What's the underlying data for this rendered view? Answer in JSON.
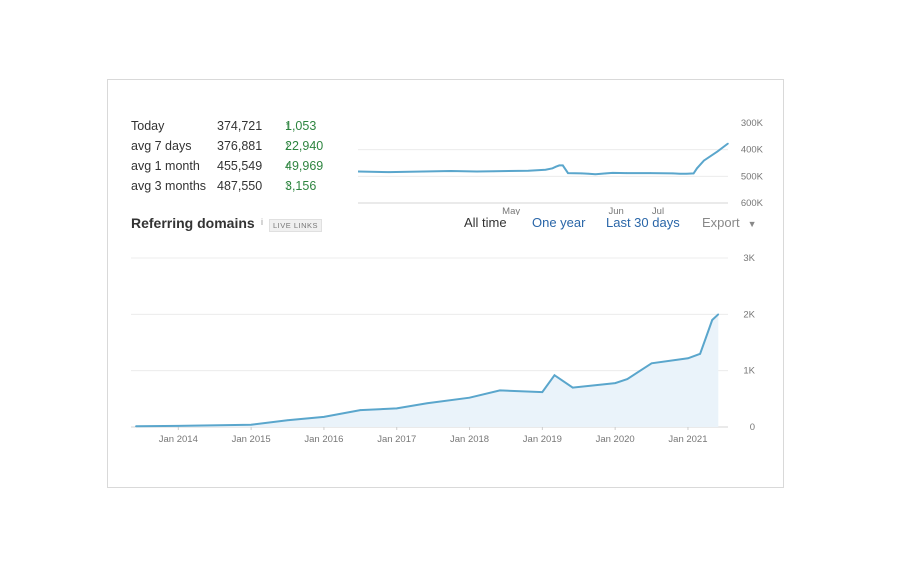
{
  "stats": [
    {
      "label": "Today",
      "value": "374,721",
      "delta": "1,053"
    },
    {
      "label": "avg 7 days",
      "value": "376,881",
      "delta": "22,940"
    },
    {
      "label": "avg 1 month",
      "value": "455,549",
      "delta": "49,969"
    },
    {
      "label": "avg 3 months",
      "value": "487,550",
      "delta": "3,156"
    }
  ],
  "icons": {
    "up_arrow": "up-arrow-icon",
    "info": "info-icon",
    "dropdown": "caret-down-icon"
  },
  "colors": {
    "line": "#5aa6cc",
    "area": "#eaf3fa",
    "positive": "#2e8540",
    "link": "#2a66a8"
  },
  "referring_domains": {
    "title": "Referring domains",
    "info_glyph": "i",
    "badge": "LIVE LINKS",
    "tabs": {
      "all_time": "All time",
      "one_year": "One year",
      "last_30_days": "Last 30 days",
      "export": "Export"
    }
  },
  "chart_data": [
    {
      "type": "line",
      "name": "rank-mini",
      "x_ticks": [
        "May",
        "Jun",
        "Jul"
      ],
      "y_ticks": [
        "300K",
        "400K",
        "500K",
        "600K"
      ],
      "y_reversed": true,
      "ylim": [
        300000,
        600000
      ],
      "x": [
        "Apr 1",
        "Apr 10",
        "Apr 20",
        "Apr 28",
        "May 5",
        "May 10",
        "May 20",
        "May 25",
        "May 27",
        "May 28",
        "May 29",
        "May 30",
        "Jun 1",
        "Jun 5",
        "Jun 7",
        "Jun 9",
        "Jun 12",
        "Jun 14",
        "Jun 18",
        "Jun 25",
        "Jul 1",
        "Jul 3",
        "Jul 5",
        "Jul 7",
        "Jul 8",
        "Jul 10",
        "Jul 14",
        "Jul 17"
      ],
      "y": [
        482000,
        484000,
        482000,
        480000,
        482000,
        481000,
        479000,
        475000,
        470000,
        464000,
        459000,
        459000,
        488000,
        489000,
        490000,
        492000,
        489000,
        487000,
        488000,
        488000,
        489000,
        490000,
        490000,
        489000,
        470000,
        441000,
        406000,
        377000
      ]
    },
    {
      "type": "area",
      "name": "referring-domains",
      "x_ticks": [
        "Jan 2014",
        "Jan 2015",
        "Jan 2016",
        "Jan 2017",
        "Jan 2018",
        "Jan 2019",
        "Jan 2020",
        "Jan 2021"
      ],
      "y_ticks": [
        "3K",
        "2K",
        "1K",
        "0"
      ],
      "ylim": [
        0,
        3000
      ],
      "x": [
        "Jun 2013",
        "Jan 2014",
        "Jan 2015",
        "Jul 2015",
        "Jan 2016",
        "Jul 2016",
        "Jan 2017",
        "Jun 2017",
        "Jan 2018",
        "Jun 2018",
        "Jan 2019",
        "Mar 2019",
        "Jun 2019",
        "Jan 2020",
        "Mar 2020",
        "Jul 2020",
        "Jan 2021",
        "Mar 2021",
        "Apr 2021",
        "May 2021",
        "Jun 2021"
      ],
      "y": [
        15,
        20,
        40,
        120,
        180,
        300,
        330,
        420,
        520,
        650,
        620,
        920,
        700,
        780,
        850,
        1130,
        1220,
        1300,
        1600,
        1900,
        2000
      ]
    }
  ]
}
